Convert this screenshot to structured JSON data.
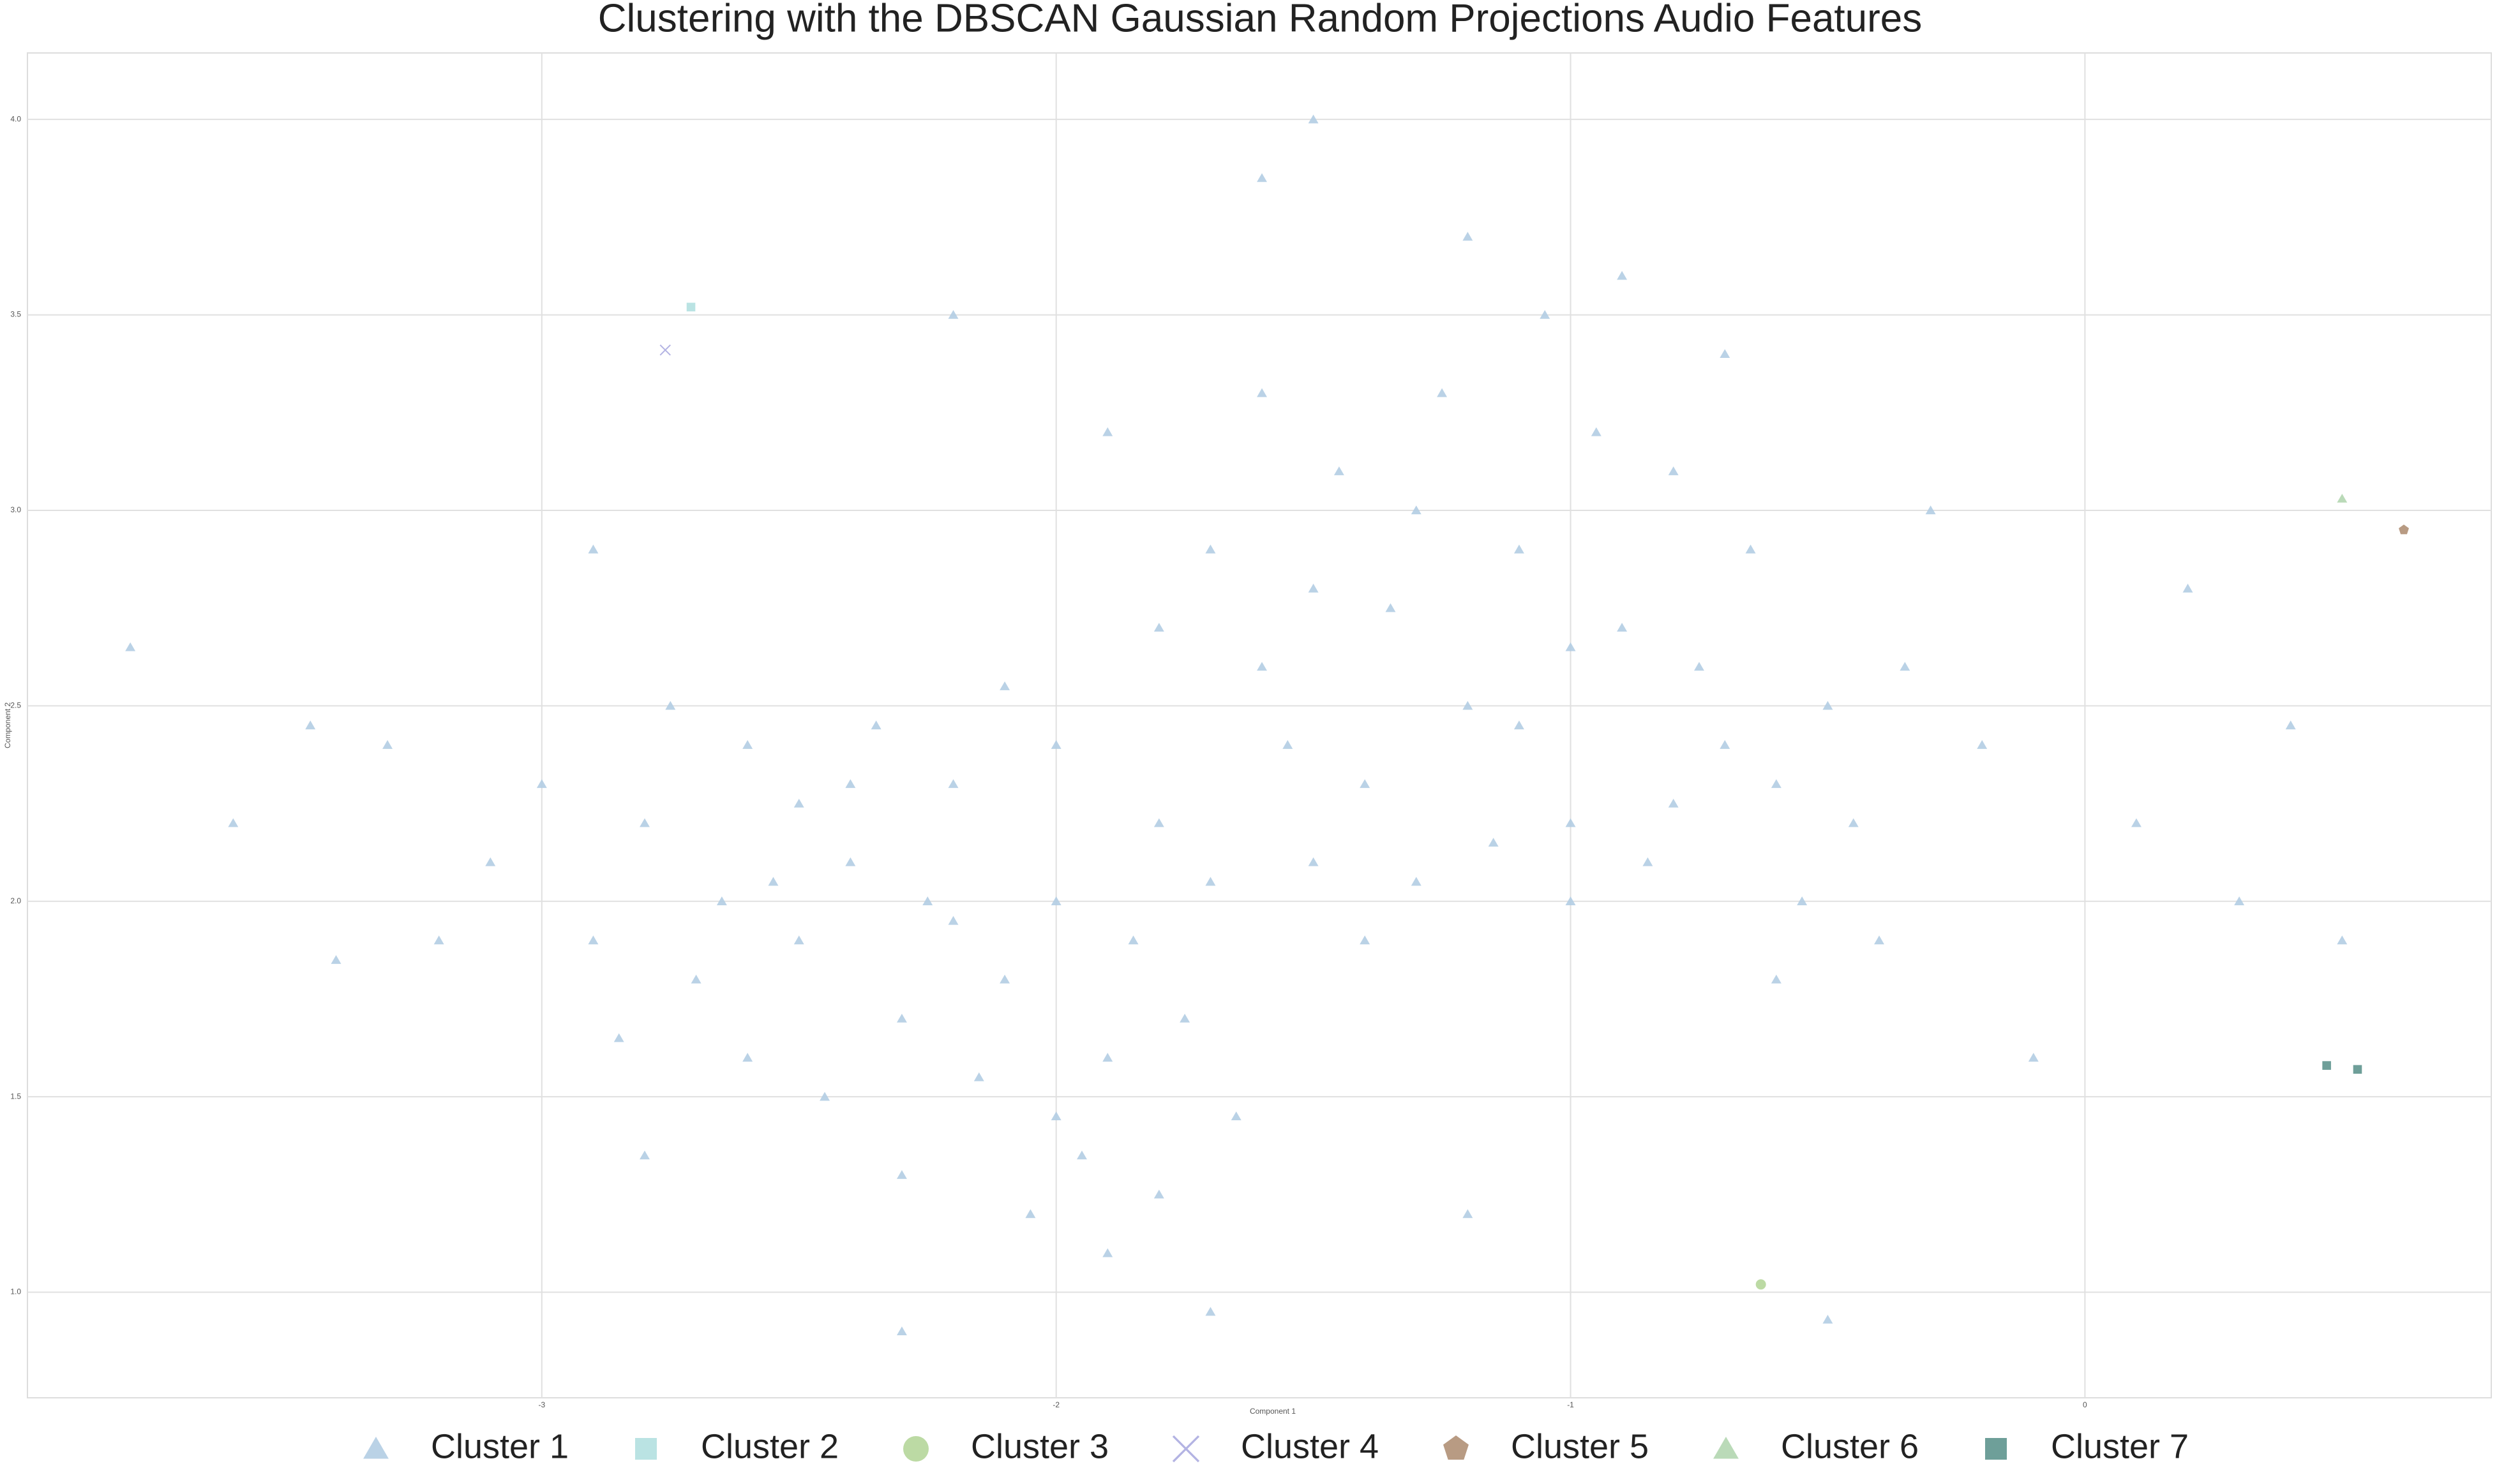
{
  "chart_data": {
    "type": "scatter",
    "title": "Clustering with the DBSCAN Gaussian Random Projections Audio Features",
    "xlabel": "Component 1",
    "ylabel": "Component 2",
    "xlim": [
      -4.0,
      0.79
    ],
    "ylim": [
      0.73,
      4.17
    ],
    "xticks": [
      -3,
      -2,
      -1,
      0
    ],
    "yticks": [
      {
        "value": 1,
        "label": "1.0"
      },
      {
        "value": 1.5,
        "label": "1.5"
      },
      {
        "value": 2,
        "label": "2.0"
      },
      {
        "value": 2.5,
        "label": "2.5"
      },
      {
        "value": 3,
        "label": "3.0"
      },
      {
        "value": 3.5,
        "label": "3.5"
      },
      {
        "value": 4,
        "label": "4.0"
      }
    ],
    "grid": true,
    "legend": "bottom",
    "series": [
      {
        "name": "Cluster 1",
        "color": "#b3cde3",
        "marker": "triangle",
        "x": [
          -2.8,
          -2.6,
          -2.5,
          -2.4,
          -2.3,
          -2.2,
          -2.1,
          -2.0,
          -1.9,
          -1.8,
          -2.7,
          -2.55,
          -2.35,
          -2.15,
          -1.95,
          -2.05,
          -1.85,
          -2.45,
          -2.65,
          -2.9,
          -3.0,
          -3.1,
          -2.75,
          -2.25,
          -2.0,
          -1.75,
          -1.65,
          -2.3,
          -2.6,
          -1.9,
          -2.1,
          -2.4,
          -2.2,
          -1.7,
          -2.5,
          -2.85,
          -3.2,
          -3.3,
          -2.0,
          -1.8,
          -1.5,
          -1.3,
          -1.2,
          -1.1,
          -1.0,
          -0.9,
          -0.8,
          -0.7,
          -1.4,
          -1.6,
          -1.25,
          -1.05,
          -0.95,
          -0.85,
          -0.75,
          -0.6,
          -0.5,
          -1.35,
          -1.15,
          -1.45,
          -1.7,
          -1.55,
          -0.65,
          -0.55,
          -1.0,
          -0.9,
          -1.2,
          -1.1,
          -0.8,
          -1.3,
          -0.45,
          -0.35,
          -1.6,
          -1.8,
          -0.7,
          -1.0,
          -1.4,
          -0.6,
          -0.4,
          -1.5,
          -3.8,
          -3.6,
          -3.45,
          -2.2,
          -1.6,
          -1.5,
          -0.2,
          0.1,
          0.3,
          0.4,
          -0.1,
          -2.3,
          -1.7,
          -0.5,
          -3.4,
          -1.2,
          -2.8,
          -0.3,
          0.2,
          -2.9,
          -1.9,
          0.5
        ],
        "y": [
          2.2,
          2.4,
          1.9,
          2.1,
          1.7,
          2.3,
          1.8,
          2.0,
          1.6,
          2.2,
          1.8,
          2.05,
          2.45,
          1.55,
          1.35,
          1.2,
          1.9,
          1.5,
          2.0,
          1.9,
          2.3,
          2.1,
          2.5,
          2.0,
          2.4,
          1.7,
          1.45,
          1.3,
          1.6,
          1.1,
          2.55,
          2.3,
          1.95,
          2.05,
          2.25,
          1.65,
          1.9,
          2.4,
          1.45,
          1.25,
          2.8,
          3.0,
          2.5,
          2.9,
          2.2,
          2.7,
          3.1,
          2.4,
          2.3,
          2.6,
          3.3,
          3.5,
          3.2,
          2.1,
          2.6,
          2.3,
          2.5,
          2.75,
          2.15,
          3.1,
          2.9,
          2.4,
          2.9,
          2.0,
          2.0,
          3.6,
          3.7,
          2.45,
          2.25,
          2.05,
          2.2,
          2.6,
          3.3,
          2.7,
          3.4,
          2.65,
          1.9,
          1.8,
          1.9,
          2.1,
          2.65,
          2.2,
          2.45,
          3.5,
          3.85,
          4.0,
          2.4,
          2.2,
          2.0,
          2.45,
          1.6,
          0.9,
          0.95,
          0.93,
          1.85,
          1.2,
          1.35,
          3.0,
          2.8,
          2.9,
          3.2,
          1.9
        ]
      },
      {
        "name": "Cluster 2",
        "color": "#b3e0e0",
        "marker": "square",
        "x": [
          -2.71
        ],
        "y": [
          3.52
        ]
      },
      {
        "name": "Cluster 3",
        "color": "#b5d69a",
        "marker": "circle",
        "x": [
          -0.63
        ],
        "y": [
          1.02
        ]
      },
      {
        "name": "Cluster 4",
        "color": "#b3b3e3",
        "marker": "x",
        "x": [
          -2.76
        ],
        "y": [
          3.41
        ]
      },
      {
        "name": "Cluster 5",
        "color": "#b09076",
        "marker": "pentagon",
        "x": [
          0.62
        ],
        "y": [
          2.95
        ]
      },
      {
        "name": "Cluster 6",
        "color": "#b3d6b0",
        "marker": "triangle",
        "x": [
          0.5
        ],
        "y": [
          3.03
        ]
      },
      {
        "name": "Cluster 7",
        "color": "#5e958e",
        "marker": "square",
        "x": [
          0.47,
          0.53
        ],
        "y": [
          1.58,
          1.57
        ]
      }
    ]
  }
}
